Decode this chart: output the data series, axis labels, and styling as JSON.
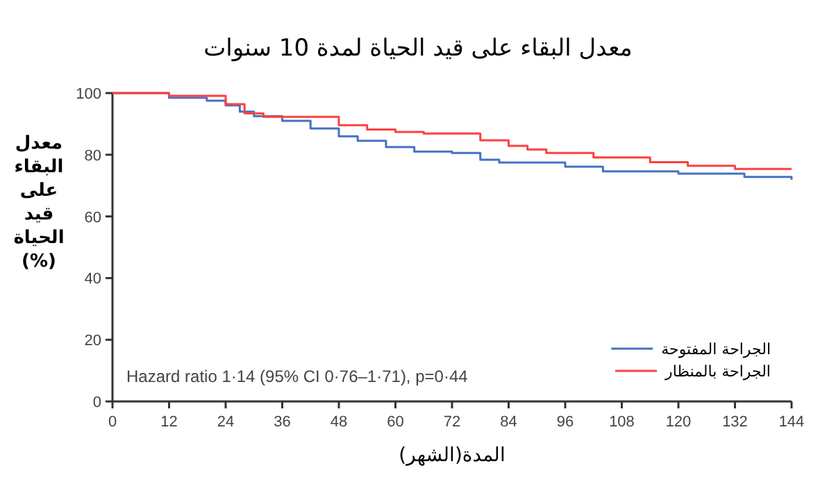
{
  "chart_data": {
    "type": "step",
    "title": "معدل البقاء على قيد الحياة لمدة 10 سنوات",
    "xlabel": "المدة(الشهر)",
    "ylabel": "معدل البقاء على قيد الحياة (%)",
    "xlim": [
      0,
      144
    ],
    "xticks": [
      0,
      12,
      24,
      36,
      48,
      60,
      72,
      84,
      96,
      108,
      120,
      132,
      144
    ],
    "ylim": [
      0,
      100
    ],
    "yticks": [
      0,
      20,
      40,
      60,
      80,
      100
    ],
    "legend": "bottom right",
    "annotations": [
      "Hazard ratio 1·14 (95% CI 0·76–1·71), p=0·44"
    ],
    "series": [
      {
        "name": "الجراحة المفتوحة",
        "color": "#4472c4",
        "x": [
          0,
          12,
          20,
          24,
          27,
          30,
          36,
          42,
          48,
          52,
          58,
          64,
          72,
          78,
          82,
          96,
          104,
          120,
          134,
          143,
          144
        ],
        "values": [
          100,
          98.5,
          97.5,
          96,
          94,
          92.5,
          91,
          88.5,
          86,
          84.5,
          82.5,
          81,
          80.6,
          78.4,
          77.5,
          76.1,
          74.6,
          73.9,
          72.8,
          72.8,
          71.9
        ]
      },
      {
        "name": "الجراحة بالمنظار",
        "color": "#ff4040",
        "x": [
          0,
          12,
          24,
          28,
          32,
          46,
          48,
          54,
          60,
          66,
          78,
          84,
          88,
          92,
          102,
          114,
          122,
          132,
          144
        ],
        "values": [
          100,
          99.1,
          96.4,
          93.4,
          92.3,
          92.3,
          89.6,
          88.2,
          87.4,
          86.9,
          84.7,
          82.9,
          81.7,
          80.6,
          79.1,
          77.6,
          76.4,
          75.4,
          75.4
        ]
      }
    ]
  }
}
